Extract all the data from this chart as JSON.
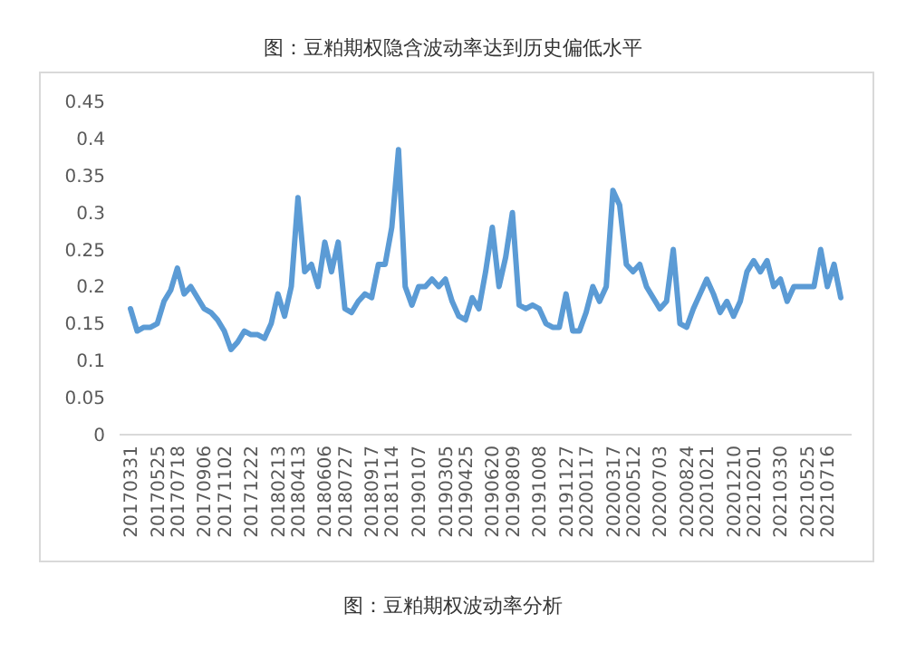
{
  "chart_data": {
    "type": "line",
    "title": "图：豆粕期权隐含波动率达到历史偏低水平",
    "annotations": [
      "图：豆粕期权波动率分析"
    ],
    "categories": [
      "20170331",
      null,
      null,
      null,
      "20170525",
      null,
      null,
      "20170718",
      null,
      null,
      null,
      "20170906",
      null,
      null,
      "20171102",
      null,
      null,
      null,
      "20171222",
      null,
      null,
      null,
      "20180213",
      null,
      null,
      "20180413",
      null,
      null,
      null,
      "20180606",
      null,
      null,
      "20180727",
      null,
      null,
      null,
      "20180917",
      null,
      null,
      "20181114",
      null,
      null,
      null,
      "20190107",
      null,
      null,
      null,
      "20190305",
      null,
      null,
      "20190425",
      null,
      null,
      null,
      "20190620",
      null,
      null,
      "20190809",
      null,
      null,
      null,
      "20191008",
      null,
      null,
      null,
      "20191127",
      null,
      null,
      "20200117",
      null,
      null,
      null,
      "20200317",
      null,
      null,
      "20200512",
      null,
      null,
      null,
      "20200703",
      null,
      null,
      null,
      "20200824",
      null,
      null,
      "20201021",
      null,
      null,
      null,
      "20201210",
      null,
      null,
      "20210201",
      null,
      null,
      null,
      "20210330",
      null,
      null,
      null,
      "20210525",
      null,
      null,
      "20210716",
      null,
      null
    ],
    "series": [
      {
        "color": "#5b9bd5",
        "values": [
          0.17,
          0.14,
          0.145,
          0.145,
          0.15,
          0.18,
          0.195,
          0.225,
          0.19,
          0.2,
          0.185,
          0.17,
          0.165,
          0.155,
          0.14,
          0.115,
          0.125,
          0.14,
          0.135,
          0.135,
          0.13,
          0.15,
          0.19,
          0.16,
          0.2,
          0.32,
          0.22,
          0.23,
          0.2,
          0.26,
          0.22,
          0.26,
          0.17,
          0.165,
          0.18,
          0.19,
          0.185,
          0.23,
          0.23,
          0.28,
          0.385,
          0.2,
          0.175,
          0.2,
          0.2,
          0.21,
          0.2,
          0.21,
          0.18,
          0.16,
          0.155,
          0.185,
          0.17,
          0.22,
          0.28,
          0.2,
          0.24,
          0.3,
          0.175,
          0.17,
          0.175,
          0.17,
          0.15,
          0.145,
          0.145,
          0.19,
          0.14,
          0.14,
          0.165,
          0.2,
          0.18,
          0.2,
          0.33,
          0.31,
          0.23,
          0.22,
          0.23,
          0.2,
          0.185,
          0.17,
          0.18,
          0.25,
          0.15,
          0.145,
          0.17,
          0.19,
          0.21,
          0.19,
          0.165,
          0.18,
          0.16,
          0.18,
          0.22,
          0.235,
          0.22,
          0.235,
          0.2,
          0.21,
          0.18,
          0.2,
          0.2,
          0.2,
          0.2,
          0.25,
          0.2,
          0.23,
          0.185
        ]
      }
    ],
    "ylim": [
      0,
      0.45
    ],
    "yticks": [
      0,
      0.05,
      0.1,
      0.15,
      0.2,
      0.25,
      0.3,
      0.35,
      0.4,
      0.45
    ],
    "grid": false,
    "marker": "none",
    "line_style": "solid"
  }
}
